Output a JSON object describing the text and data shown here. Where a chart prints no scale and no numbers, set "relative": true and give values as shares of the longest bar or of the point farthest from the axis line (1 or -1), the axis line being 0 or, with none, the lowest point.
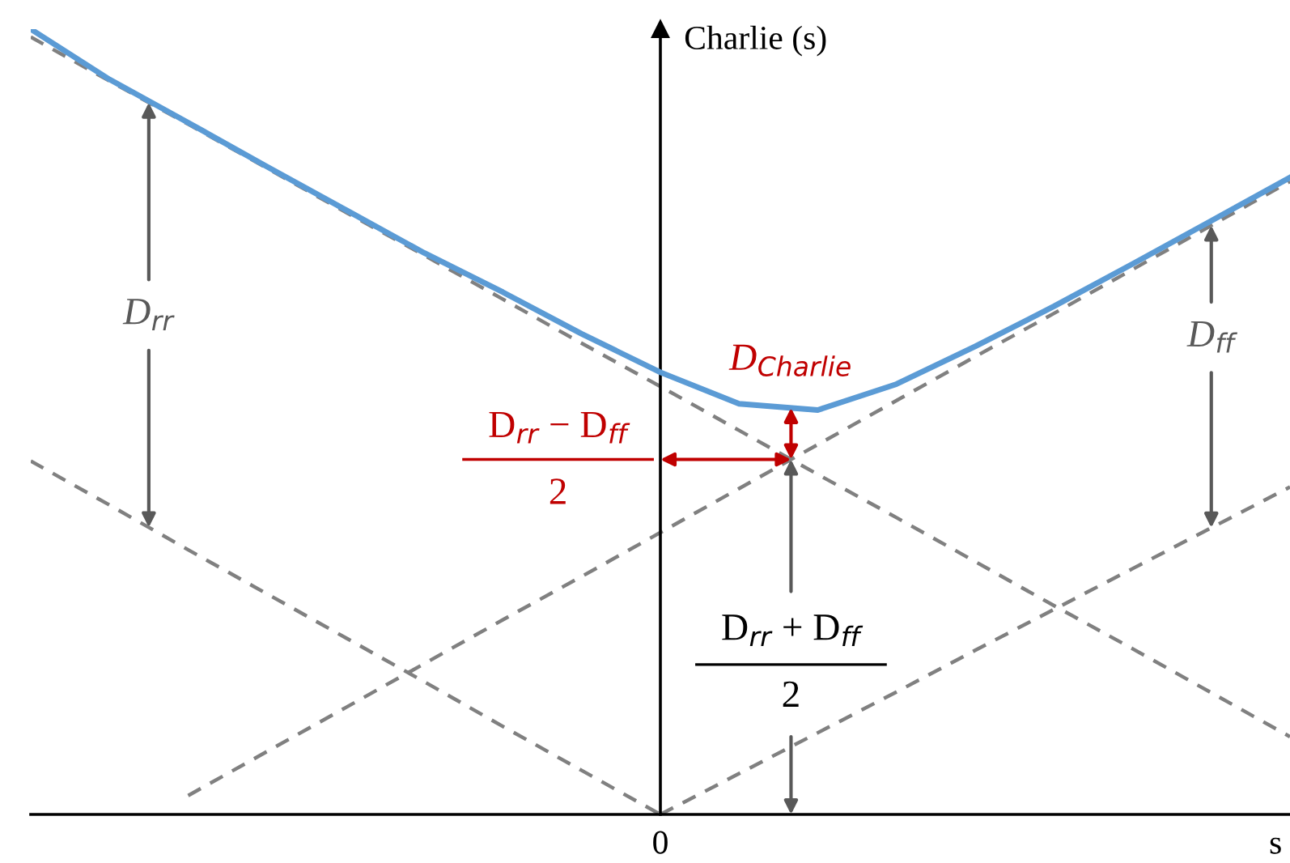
{
  "chart_data": {
    "type": "line",
    "relative": true,
    "ylabel": "Charlie (s)",
    "xlabel": "s",
    "categories": [
      null,
      null,
      null,
      null,
      null,
      null,
      null,
      null,
      null,
      null,
      null,
      null,
      null,
      null,
      null,
      null,
      null
    ],
    "series": [
      {
        "color": "#5b9bd5",
        "line_style": "solid",
        "values": [
          1.0,
          0.936,
          0.881,
          0.825,
          0.77,
          0.715,
          0.665,
          0.612,
          0.563,
          0.523,
          0.515,
          0.548,
          0.596,
          0.647,
          0.701,
          0.756,
          0.811
        ]
      },
      {
        "color": "#808080",
        "line_style": "dashed",
        "values": [
          0.99,
          0.934,
          0.879,
          0.823,
          0.767,
          0.712,
          0.656,
          0.6,
          0.545,
          0.489,
          0.433,
          0.378,
          0.322,
          0.266,
          0.211,
          0.155,
          0.099
        ]
      },
      {
        "color": "#808080",
        "line_style": "dashed",
        "values": [
          null,
          null,
          0.024,
          0.08,
          0.136,
          0.192,
          0.248,
          0.303,
          0.359,
          0.415,
          0.471,
          0.527,
          0.583,
          0.638,
          0.694,
          0.75,
          0.806
        ]
      },
      {
        "color": "#808080",
        "line_style": "dashed",
        "values": [
          0.45,
          0.394,
          0.337,
          0.281,
          0.225,
          0.169,
          0.112,
          0.056,
          0,
          null,
          null,
          null,
          null,
          null,
          null,
          null,
          null
        ]
      },
      {
        "color": "#808080",
        "line_style": "dashed",
        "values": [
          null,
          null,
          null,
          null,
          null,
          null,
          null,
          null,
          0,
          0.052,
          0.104,
          0.156,
          0.209,
          0.261,
          0.313,
          0.365,
          0.417
        ]
      }
    ],
    "annotations": [
      "D$_{rr}$",
      "D$_{ff}$",
      "D$_{Charlie}$",
      "D$_{rr}$ − D$_{ff}$",
      "2",
      "D$_{rr}$ + D$_{ff}$",
      "2",
      "0"
    ]
  }
}
